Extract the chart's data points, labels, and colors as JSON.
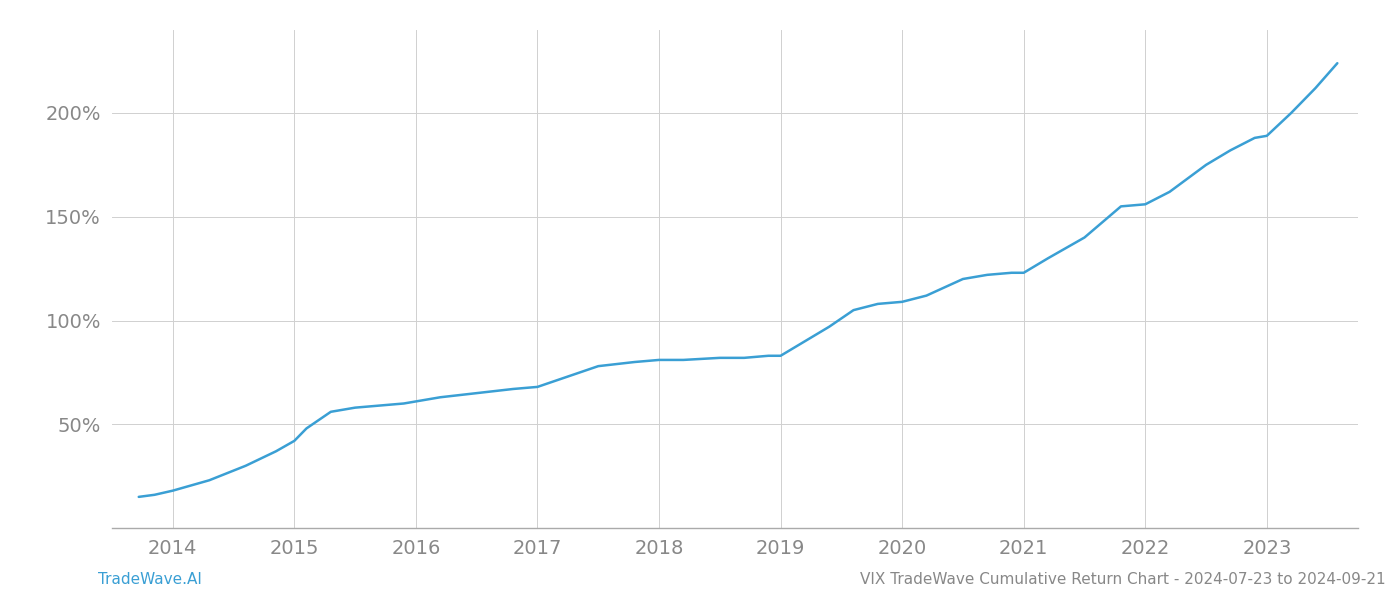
{
  "title": "VIX TradeWave Cumulative Return Chart - 2024-07-23 to 2024-09-21",
  "left_label": "TradeWave.AI",
  "line_color": "#3a9fd4",
  "background_color": "#ffffff",
  "grid_color": "#d0d0d0",
  "x_values": [
    2013.72,
    2013.85,
    2014.0,
    2014.3,
    2014.6,
    2014.85,
    2015.0,
    2015.1,
    2015.3,
    2015.5,
    2015.7,
    2015.9,
    2016.0,
    2016.2,
    2016.5,
    2016.8,
    2017.0,
    2017.2,
    2017.5,
    2017.8,
    2018.0,
    2018.2,
    2018.5,
    2018.7,
    2018.9,
    2019.0,
    2019.2,
    2019.4,
    2019.6,
    2019.8,
    2020.0,
    2020.2,
    2020.5,
    2020.7,
    2020.9,
    2021.0,
    2021.2,
    2021.5,
    2021.8,
    2022.0,
    2022.2,
    2022.5,
    2022.7,
    2022.9,
    2023.0,
    2023.2,
    2023.4,
    2023.58
  ],
  "y_values": [
    15,
    16,
    18,
    23,
    30,
    37,
    42,
    48,
    56,
    58,
    59,
    60,
    61,
    63,
    65,
    67,
    68,
    72,
    78,
    80,
    81,
    81,
    82,
    82,
    83,
    83,
    90,
    97,
    105,
    108,
    109,
    112,
    120,
    122,
    123,
    123,
    130,
    140,
    155,
    156,
    162,
    175,
    182,
    188,
    189,
    200,
    212,
    224
  ],
  "xlim": [
    2013.5,
    2023.75
  ],
  "ylim": [
    0,
    240
  ],
  "yticks": [
    50,
    100,
    150,
    200
  ],
  "ytick_labels": [
    "50%",
    "100%",
    "150%",
    "200%"
  ],
  "xticks": [
    2014,
    2015,
    2016,
    2017,
    2018,
    2019,
    2020,
    2021,
    2022,
    2023
  ],
  "tick_color": "#888888",
  "tick_fontsize": 14,
  "title_fontsize": 11,
  "label_fontsize": 11,
  "line_width": 1.8
}
